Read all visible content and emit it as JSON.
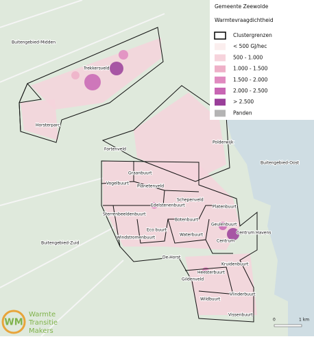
{
  "header": {
    "title": "Gemeente Zeewolde",
    "subtitle": "Warmtevraagdichtheid"
  },
  "legend": {
    "items": [
      {
        "label": "Clustergrenzen",
        "color": "#ffffff",
        "stroke": "#000000"
      },
      {
        "label": "< 500 GJ/hec",
        "color": "#fbeeee"
      },
      {
        "label": "500 - 1.000",
        "color": "#f6d3dc"
      },
      {
        "label": "1.000 - 1.500",
        "color": "#eeb0c8"
      },
      {
        "label": "1.500 - 2.000",
        "color": "#e08ac0"
      },
      {
        "label": "2.000 - 2.500",
        "color": "#c866b4"
      },
      {
        "label": "> 2.500",
        "color": "#9a3f9a"
      },
      {
        "label": "Panden",
        "color": "#b4b4b4"
      }
    ]
  },
  "areas": [
    "Buitengebied-Midden",
    "Trekkersveld",
    "Horsterparc",
    "Fortenveld",
    "Polderwijk",
    "Buitengebied-Oost",
    "Graanbuurt",
    "Vogelbuurt",
    "Planetenveld",
    "Edelstenenbuurt",
    "Sterrenbeeldenbuurt",
    "Schepenveld",
    "Platenbuurt",
    "Geulenbuurt",
    "Centrum Havens",
    "Botenbuurt",
    "Eco buurt",
    "Windstromenbuurt",
    "Waterbuurt",
    "Centrum",
    "Buitengebied-Zuid",
    "De Horst",
    "Kruidenbuurt",
    "Heesterbuurt",
    "Gildenveld",
    "Vlinderbuurt",
    "Wildbuurt",
    "Vissenbuurt"
  ],
  "logo": {
    "initials": "WM",
    "line1": "Warmte",
    "line2": "Transitie",
    "line3": "Makers"
  },
  "scale": {
    "start": "0",
    "end": "1 km"
  }
}
